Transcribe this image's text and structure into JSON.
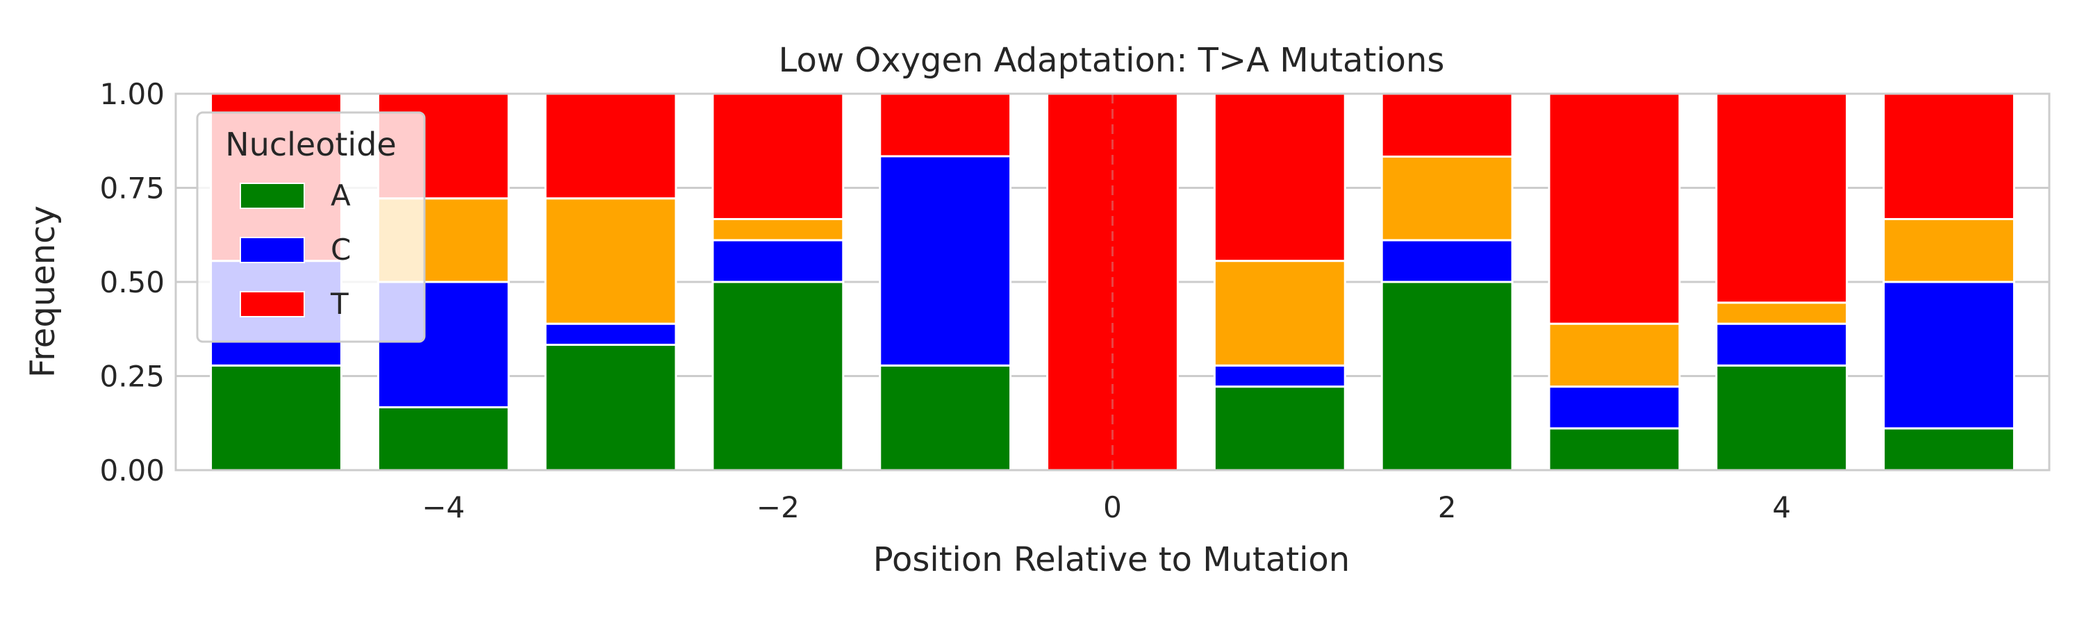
{
  "chart_data": {
    "type": "bar",
    "stacked": true,
    "title": "Low Oxygen Adaptation: T>A Mutations",
    "xlabel": "Position Relative to Mutation",
    "ylabel": "Frequency",
    "x": [
      -5,
      -4,
      -3,
      -2,
      -1,
      0,
      1,
      2,
      3,
      4,
      5
    ],
    "xlim": [
      -5.6,
      5.6
    ],
    "ylim": [
      0,
      1
    ],
    "xticks": [
      -4,
      -2,
      0,
      2,
      4
    ],
    "xtick_labels": [
      "−4",
      "−2",
      "0",
      "2",
      "4"
    ],
    "yticks": [
      0,
      0.25,
      0.5,
      0.75,
      1.0
    ],
    "ytick_labels": [
      "0.00",
      "0.25",
      "0.50",
      "0.75",
      "1.00"
    ],
    "grid": true,
    "center_line_x": 0,
    "legend": {
      "title": "Nucleotide",
      "placement": "top-left",
      "entries": [
        "A",
        "C",
        "T"
      ]
    },
    "series": [
      {
        "name": "A",
        "color": "#008000",
        "values": [
          0.278,
          0.167,
          0.333,
          0.5,
          0.278,
          0.0,
          0.222,
          0.5,
          0.111,
          0.278,
          0.111
        ]
      },
      {
        "name": "C",
        "color": "#0000ff",
        "values": [
          0.278,
          0.333,
          0.056,
          0.111,
          0.556,
          0.0,
          0.056,
          0.111,
          0.111,
          0.111,
          0.389
        ]
      },
      {
        "color": "#ffa500",
        "values": [
          0.0,
          0.222,
          0.333,
          0.056,
          0.0,
          0.0,
          0.278,
          0.222,
          0.167,
          0.056,
          0.167
        ]
      },
      {
        "name": "T",
        "color": "#ff0000",
        "values": [
          0.444,
          0.278,
          0.278,
          0.333,
          0.167,
          1.0,
          0.444,
          0.167,
          0.611,
          0.556,
          0.333
        ]
      }
    ]
  }
}
